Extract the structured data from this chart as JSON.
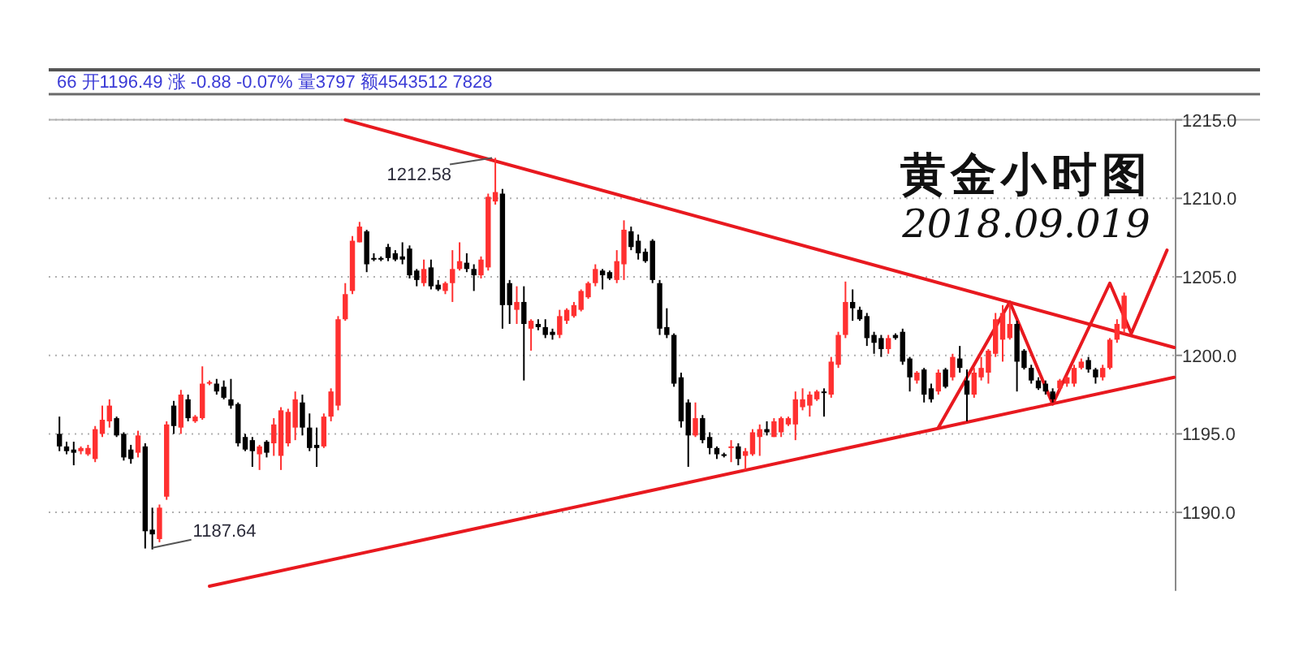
{
  "chart_data": {
    "type": "candlestick",
    "title": "黄金小时图",
    "subtitle": "2018.09.019",
    "annotations": [
      "66 开1196.49 涨 -0.88 -0.07% 量3797 额4543512 7828",
      "1212.58",
      "1187.64"
    ],
    "categories": [
      null,
      null,
      null,
      null,
      null,
      null,
      null,
      null,
      null,
      null,
      null,
      null,
      null,
      null,
      null,
      null,
      null,
      null,
      null,
      null,
      null,
      null,
      null,
      null,
      null,
      null,
      null,
      null,
      null,
      null,
      null,
      null,
      null,
      null,
      null,
      null,
      null,
      null,
      null,
      null,
      null,
      null,
      null,
      null,
      null,
      null,
      null,
      null,
      null,
      null,
      null,
      null,
      null,
      null,
      null,
      null,
      null,
      null,
      null,
      null,
      null,
      null,
      null,
      null,
      null,
      null,
      null,
      null,
      null,
      null,
      null,
      null,
      null,
      null,
      null,
      null,
      null,
      null,
      null,
      null,
      null,
      null,
      null,
      null,
      null,
      null,
      null,
      null,
      null,
      null,
      null,
      null,
      null,
      null,
      null,
      null,
      null,
      null,
      null,
      null,
      null,
      null,
      null,
      null,
      null,
      null,
      null,
      null,
      null,
      null,
      null,
      null,
      null,
      null,
      null,
      null,
      null,
      null,
      null,
      null,
      null,
      null,
      null,
      null,
      null,
      null,
      null,
      null,
      null,
      null,
      null,
      null,
      null,
      null,
      null,
      null,
      null,
      null,
      null,
      null,
      null,
      null,
      null,
      null,
      null,
      null,
      null,
      null,
      null,
      null,
      null,
      null,
      null,
      null,
      null,
      null,
      null
    ],
    "ohlc": [
      [
        1195.0,
        1196.1,
        1193.9,
        1194.2
      ],
      [
        1194.2,
        1194.5,
        1193.7,
        1193.9
      ],
      [
        1194.0,
        1194.5,
        1193.0,
        1193.8
      ],
      [
        1193.9,
        1194.2,
        1193.7,
        1194.1
      ],
      [
        1193.7,
        1194.3,
        1193.6,
        1194.1
      ],
      [
        1193.4,
        1195.5,
        1193.2,
        1195.3
      ],
      [
        1195.0,
        1196.8,
        1194.8,
        1195.9
      ],
      [
        1195.8,
        1197.2,
        1195.4,
        1196.8
      ],
      [
        1196.0,
        1196.1,
        1194.8,
        1194.9
      ],
      [
        1195.0,
        1195.1,
        1193.3,
        1193.5
      ],
      [
        1194.0,
        1194.3,
        1193.1,
        1193.4
      ],
      [
        1193.8,
        1195.2,
        1193.5,
        1194.9
      ],
      [
        1194.2,
        1194.4,
        1187.7,
        1188.8
      ],
      [
        1188.9,
        1190.3,
        1187.64,
        1188.6
      ],
      [
        1188.3,
        1190.5,
        1188.1,
        1190.3
      ],
      [
        1191.0,
        1195.8,
        1190.8,
        1195.6
      ],
      [
        1196.8,
        1197.1,
        1195.0,
        1195.5
      ],
      [
        1195.4,
        1197.8,
        1195.0,
        1197.5
      ],
      [
        1197.2,
        1197.5,
        1195.8,
        1196.0
      ],
      [
        1195.8,
        1196.2,
        1195.7,
        1196.1
      ],
      [
        1196.0,
        1199.3,
        1195.9,
        1198.2
      ],
      [
        1198.2,
        1198.4,
        1198.1,
        1198.3
      ],
      [
        1198.2,
        1198.5,
        1197.5,
        1197.7
      ],
      [
        1198.0,
        1198.4,
        1197.2,
        1197.3
      ],
      [
        1197.2,
        1198.5,
        1196.6,
        1196.8
      ],
      [
        1196.9,
        1197.0,
        1194.2,
        1194.4
      ],
      [
        1194.8,
        1195.0,
        1193.9,
        1194.0
      ],
      [
        1194.6,
        1194.8,
        1192.9,
        1193.9
      ],
      [
        1193.7,
        1194.3,
        1192.7,
        1194.2
      ],
      [
        1194.5,
        1194.6,
        1193.5,
        1193.8
      ],
      [
        1194.4,
        1196.0,
        1193.6,
        1195.6
      ],
      [
        1193.6,
        1196.7,
        1192.7,
        1196.5
      ],
      [
        1194.4,
        1196.6,
        1194.2,
        1196.4
      ],
      [
        1195.4,
        1197.7,
        1194.6,
        1197.2
      ],
      [
        1197.0,
        1197.5,
        1194.9,
        1195.4
      ],
      [
        1195.4,
        1196.3,
        1193.9,
        1194.1
      ],
      [
        1194.3,
        1195.4,
        1192.9,
        1194.1
      ],
      [
        1194.2,
        1196.3,
        1194.1,
        1196.1
      ],
      [
        1196.1,
        1197.9,
        1195.8,
        1197.7
      ],
      [
        1196.8,
        1202.5,
        1196.5,
        1202.3
      ],
      [
        1202.3,
        1204.6,
        1202.2,
        1203.9
      ],
      [
        1204.1,
        1207.6,
        1203.9,
        1207.3
      ],
      [
        1207.2,
        1208.5,
        1207.2,
        1208.2
      ],
      [
        1207.9,
        1208.0,
        1205.3,
        1205.8
      ],
      [
        1206.2,
        1206.5,
        1206.0,
        1206.1
      ],
      [
        1206.2,
        1206.3,
        1206.0,
        1206.1
      ],
      [
        1206.9,
        1207.1,
        1206.0,
        1206.2
      ],
      [
        1206.5,
        1206.7,
        1206.0,
        1206.1
      ],
      [
        1206.3,
        1207.2,
        1205.8,
        1206.1
      ],
      [
        1206.8,
        1207.0,
        1204.9,
        1205.1
      ],
      [
        1205.4,
        1205.5,
        1204.4,
        1204.8
      ],
      [
        1204.6,
        1206.1,
        1204.4,
        1205.5
      ],
      [
        1205.6,
        1206.1,
        1204.2,
        1204.4
      ],
      [
        1204.5,
        1204.8,
        1204.1,
        1204.2
      ],
      [
        1204.1,
        1204.7,
        1203.9,
        1204.6
      ],
      [
        1204.6,
        1206.7,
        1203.4,
        1205.5
      ],
      [
        1205.5,
        1207.2,
        1205.4,
        1206.0
      ],
      [
        1205.9,
        1206.5,
        1205.3,
        1205.5
      ],
      [
        1205.5,
        1205.8,
        1204.1,
        1205.1
      ],
      [
        1205.1,
        1206.3,
        1204.9,
        1206.1
      ],
      [
        1205.6,
        1210.3,
        1205.4,
        1210.1
      ],
      [
        1209.8,
        1212.58,
        1209.6,
        1210.4
      ],
      [
        1210.3,
        1210.6,
        1201.7,
        1203.2
      ],
      [
        1204.6,
        1204.8,
        1202.0,
        1203.2
      ],
      [
        1202.9,
        1204.4,
        1202.0,
        1203.4
      ],
      [
        1203.4,
        1204.4,
        1198.4,
        1202.0
      ],
      [
        1201.7,
        1202.3,
        1200.3,
        1202.2
      ],
      [
        1202.0,
        1202.3,
        1201.6,
        1201.8
      ],
      [
        1201.8,
        1202.3,
        1201.1,
        1201.3
      ],
      [
        1201.5,
        1201.7,
        1201.0,
        1201.3
      ],
      [
        1201.3,
        1202.9,
        1201.1,
        1202.5
      ],
      [
        1202.2,
        1203.0,
        1202.0,
        1202.9
      ],
      [
        1202.5,
        1203.4,
        1202.4,
        1203.2
      ],
      [
        1202.9,
        1204.2,
        1202.8,
        1204.1
      ],
      [
        1203.7,
        1204.7,
        1203.6,
        1204.6
      ],
      [
        1204.6,
        1205.8,
        1204.4,
        1205.5
      ],
      [
        1205.4,
        1205.5,
        1204.2,
        1205.1
      ],
      [
        1205.3,
        1205.4,
        1204.8,
        1204.9
      ],
      [
        1204.8,
        1206.7,
        1204.6,
        1206.0
      ],
      [
        1205.8,
        1208.6,
        1204.8,
        1208.0
      ],
      [
        1207.9,
        1208.2,
        1206.7,
        1206.9
      ],
      [
        1207.3,
        1207.7,
        1206.1,
        1206.5
      ],
      [
        1206.6,
        1206.8,
        1205.9,
        1206.0
      ],
      [
        1207.3,
        1207.4,
        1204.6,
        1204.8
      ],
      [
        1204.6,
        1204.8,
        1201.3,
        1201.7
      ],
      [
        1201.8,
        1203.0,
        1201.1,
        1201.3
      ],
      [
        1201.3,
        1201.4,
        1198.0,
        1198.2
      ],
      [
        1198.6,
        1198.9,
        1195.4,
        1195.8
      ],
      [
        1197.0,
        1197.2,
        1192.9,
        1194.9
      ],
      [
        1194.9,
        1197.0,
        1194.8,
        1196.0
      ],
      [
        1196.0,
        1196.2,
        1194.4,
        1194.6
      ],
      [
        1194.8,
        1195.1,
        1193.7,
        1194.1
      ],
      [
        1194.1,
        1194.2,
        1193.4,
        1193.7
      ],
      [
        1193.7,
        1193.8,
        1193.5,
        1193.6
      ],
      [
        1194.1,
        1194.6,
        1193.2,
        1194.2
      ],
      [
        1194.2,
        1194.4,
        1193.0,
        1193.4
      ],
      [
        1193.6,
        1194.1,
        1192.7,
        1193.9
      ],
      [
        1193.7,
        1195.3,
        1193.6,
        1195.1
      ],
      [
        1194.8,
        1195.6,
        1193.6,
        1195.3
      ],
      [
        1195.3,
        1195.8,
        1194.9,
        1195.1
      ],
      [
        1194.8,
        1196.0,
        1194.8,
        1195.8
      ],
      [
        1195.1,
        1196.1,
        1194.8,
        1196.0
      ],
      [
        1195.6,
        1196.1,
        1195.5,
        1196.0
      ],
      [
        1195.6,
        1197.7,
        1194.6,
        1197.2
      ],
      [
        1196.7,
        1197.9,
        1196.5,
        1197.2
      ],
      [
        1196.8,
        1197.7,
        1196.1,
        1197.5
      ],
      [
        1197.2,
        1197.8,
        1197.1,
        1197.7
      ],
      [
        1197.7,
        1197.9,
        1196.1,
        1197.6
      ],
      [
        1197.5,
        1199.9,
        1197.3,
        1199.6
      ],
      [
        1199.4,
        1201.5,
        1199.2,
        1201.3
      ],
      [
        1201.3,
        1204.7,
        1201.1,
        1203.4
      ],
      [
        1203.4,
        1204.2,
        1202.2,
        1203.0
      ],
      [
        1202.9,
        1203.1,
        1202.2,
        1202.3
      ],
      [
        1202.5,
        1202.7,
        1200.6,
        1201.1
      ],
      [
        1201.3,
        1201.5,
        1200.1,
        1200.8
      ],
      [
        1201.1,
        1201.3,
        1199.9,
        1200.4
      ],
      [
        1200.4,
        1201.3,
        1200.1,
        1201.1
      ],
      [
        1201.3,
        1201.4,
        1201.0,
        1201.1
      ],
      [
        1201.5,
        1201.7,
        1199.4,
        1199.6
      ],
      [
        1199.8,
        1199.9,
        1197.7,
        1198.6
      ],
      [
        1198.4,
        1199.0,
        1198.2,
        1198.9
      ],
      [
        1199.1,
        1199.2,
        1197.0,
        1197.5
      ],
      [
        1197.9,
        1198.2,
        1197.0,
        1197.2
      ],
      [
        1197.7,
        1199.1,
        1197.5,
        1198.9
      ],
      [
        1199.1,
        1199.2,
        1197.9,
        1198.0
      ],
      [
        1198.6,
        1200.1,
        1198.4,
        1199.9
      ],
      [
        1199.8,
        1200.6,
        1198.9,
        1199.2
      ],
      [
        1198.4,
        1199.1,
        1195.8,
        1197.5
      ],
      [
        1197.5,
        1199.2,
        1197.3,
        1198.9
      ],
      [
        1198.6,
        1199.9,
        1198.4,
        1199.2
      ],
      [
        1198.9,
        1200.4,
        1198.2,
        1200.3
      ],
      [
        1200.1,
        1202.7,
        1199.9,
        1202.3
      ],
      [
        1201.0,
        1203.2,
        1199.6,
        1202.7
      ],
      [
        1201.1,
        1203.3,
        1201.0,
        1202.0
      ],
      [
        1202.0,
        1202.2,
        1197.7,
        1199.6
      ],
      [
        1200.3,
        1200.4,
        1199.1,
        1199.2
      ],
      [
        1199.2,
        1199.4,
        1198.2,
        1198.4
      ],
      [
        1198.4,
        1198.6,
        1197.8,
        1197.9
      ],
      [
        1198.2,
        1198.4,
        1197.5,
        1197.7
      ],
      [
        1197.7,
        1197.9,
        1197.0,
        1197.2
      ],
      [
        1197.9,
        1198.5,
        1197.7,
        1198.4
      ],
      [
        1198.2,
        1198.7,
        1198.0,
        1198.6
      ],
      [
        1198.2,
        1199.4,
        1198.0,
        1199.2
      ],
      [
        1199.2,
        1199.8,
        1199.1,
        1199.6
      ],
      [
        1199.7,
        1199.9,
        1198.9,
        1199.1
      ],
      [
        1199.1,
        1199.2,
        1198.2,
        1198.6
      ],
      [
        1198.6,
        1199.4,
        1198.4,
        1199.2
      ],
      [
        1199.2,
        1201.1,
        1199.1,
        1201.0
      ],
      [
        1201.0,
        1202.3,
        1200.8,
        1202.0
      ],
      [
        1201.7,
        1204.0,
        1201.4,
        1203.8
      ],
      null,
      null,
      null,
      null,
      null,
      null,
      null
    ],
    "colors": [
      "#000000",
      "#000000",
      "#000000",
      "#ff3030",
      "#ff3030",
      "#ff3030",
      "#ff3030",
      "#ff3030",
      "#000000",
      "#000000",
      "#000000",
      "#ff3030",
      "#000000",
      "#000000",
      "#ff3030",
      "#ff3030",
      "#000000",
      "#ff3030",
      "#000000",
      "#ff3030",
      "#ff3030",
      "#ff3030",
      "#000000",
      "#000000",
      "#000000",
      "#000000",
      "#000000",
      "#000000",
      "#ff3030",
      "#000000",
      "#ff3030",
      "#ff3030",
      "#ff3030",
      "#ff3030",
      "#000000",
      "#000000",
      "#000000",
      "#ff3030",
      "#ff3030",
      "#ff3030",
      "#ff3030",
      "#ff3030",
      "#ff3030",
      "#000000",
      "#000000",
      "#000000",
      "#000000",
      "#000000",
      "#000000",
      "#000000",
      "#000000",
      "#ff3030",
      "#000000",
      "#000000",
      "#ff3030",
      "#ff3030",
      "#ff3030",
      "#000000",
      "#000000",
      "#ff3030",
      "#ff3030",
      "#ff3030",
      "#000000",
      "#000000",
      "#ff3030",
      "#000000",
      "#ff3030",
      "#000000",
      "#000000",
      "#000000",
      "#ff3030",
      "#ff3030",
      "#ff3030",
      "#ff3030",
      "#ff3030",
      "#ff3030",
      "#000000",
      "#000000",
      "#ff3030",
      "#ff3030",
      "#000000",
      "#000000",
      "#000000",
      "#000000",
      "#000000",
      "#000000",
      "#000000",
      "#000000",
      "#000000",
      "#ff3030",
      "#000000",
      "#000000",
      "#000000",
      "#000000",
      "#ff3030",
      "#000000",
      "#ff3030",
      "#ff3030",
      "#ff3030",
      "#000000",
      "#ff3030",
      "#ff3030",
      "#ff3030",
      "#ff3030",
      "#ff3030",
      "#ff3030",
      "#ff3030",
      "#000000",
      "#ff3030",
      "#ff3030",
      "#ff3030",
      "#000000",
      "#000000",
      "#000000",
      "#000000",
      "#000000",
      "#ff3030",
      "#000000",
      "#000000",
      "#000000",
      "#ff3030",
      "#000000",
      "#000000",
      "#ff3030",
      "#000000",
      "#ff3030",
      "#000000",
      "#000000",
      "#ff3030",
      "#ff3030",
      "#ff3030",
      "#ff3030",
      "#ff3030",
      "#ff3030",
      "#000000",
      "#000000",
      "#000000",
      "#000000",
      "#000000",
      "#000000",
      "#ff3030",
      "#ff3030",
      "#ff3030",
      "#ff3030",
      "#000000",
      "#000000",
      "#ff3030",
      "#ff3030",
      "#ff3030",
      "#ff3030",
      null,
      null,
      null,
      null,
      null,
      null,
      null
    ],
    "series": [
      {
        "type": "line",
        "color": "#e8191f",
        "values": [
          null,
          null,
          null,
          null,
          null,
          null,
          null,
          null,
          null,
          null,
          null,
          null,
          null,
          null,
          null,
          null,
          null,
          null,
          null,
          null,
          null,
          null,
          null,
          null,
          null,
          null,
          null,
          null,
          null,
          null,
          null,
          null,
          null,
          null,
          null,
          null,
          null,
          null,
          null,
          null,
          1215.0,
          null,
          null,
          null,
          null,
          null,
          null,
          null,
          null,
          null,
          null,
          null,
          null,
          null,
          null,
          null,
          null,
          null,
          null,
          null,
          null,
          null,
          null,
          null,
          null,
          null,
          null,
          null,
          null,
          null,
          null,
          null,
          null,
          null,
          null,
          null,
          null,
          null,
          null,
          null,
          null,
          null,
          null,
          null,
          null,
          null,
          null,
          null,
          null,
          null,
          null,
          null,
          null,
          null,
          null,
          null,
          null,
          null,
          null,
          null,
          null,
          null,
          null,
          null,
          null,
          null,
          null,
          null,
          null,
          null,
          null,
          null,
          null,
          null,
          null,
          null,
          null,
          null,
          null,
          null,
          null,
          null,
          null,
          null,
          null,
          null,
          null,
          null,
          null,
          null,
          null,
          null,
          null,
          null,
          null,
          null,
          null,
          null,
          null,
          null,
          null,
          null,
          null,
          null,
          null,
          null,
          null,
          null,
          null,
          null,
          null,
          null,
          null,
          null,
          null,
          null,
          1200.5
        ]
      },
      {
        "type": "line",
        "color": "#e8191f",
        "values": [
          null,
          null,
          null,
          null,
          null,
          null,
          null,
          null,
          null,
          null,
          null,
          null,
          null,
          null,
          null,
          null,
          null,
          null,
          null,
          null,
          null,
          1185.3,
          null,
          null,
          null,
          null,
          null,
          null,
          null,
          null,
          null,
          null,
          null,
          null,
          null,
          null,
          null,
          null,
          null,
          null,
          null,
          null,
          null,
          null,
          null,
          null,
          null,
          null,
          null,
          null,
          null,
          null,
          null,
          null,
          null,
          null,
          null,
          null,
          null,
          null,
          null,
          null,
          null,
          null,
          null,
          null,
          null,
          null,
          null,
          null,
          null,
          null,
          null,
          null,
          null,
          null,
          null,
          null,
          null,
          null,
          null,
          null,
          null,
          null,
          null,
          null,
          null,
          null,
          null,
          null,
          null,
          null,
          null,
          null,
          null,
          null,
          null,
          null,
          null,
          null,
          null,
          null,
          null,
          null,
          null,
          null,
          null,
          null,
          null,
          null,
          null,
          null,
          null,
          null,
          null,
          null,
          null,
          null,
          null,
          null,
          null,
          null,
          null,
          null,
          null,
          null,
          null,
          null,
          null,
          null,
          null,
          null,
          null,
          null,
          null,
          null,
          null,
          null,
          null,
          null,
          null,
          null,
          null,
          null,
          null,
          null,
          null,
          null,
          null,
          null,
          null,
          null,
          null,
          null,
          null,
          null,
          1198.6
        ]
      },
      {
        "type": "line",
        "color": "#e8191f",
        "values": [
          null,
          null,
          null,
          null,
          null,
          null,
          null,
          null,
          null,
          null,
          null,
          null,
          null,
          null,
          null,
          null,
          null,
          null,
          null,
          null,
          null,
          null,
          null,
          null,
          null,
          null,
          null,
          null,
          null,
          null,
          null,
          null,
          null,
          null,
          null,
          null,
          null,
          null,
          null,
          null,
          null,
          null,
          null,
          null,
          null,
          null,
          null,
          null,
          null,
          null,
          null,
          null,
          null,
          null,
          null,
          null,
          null,
          null,
          null,
          null,
          null,
          null,
          null,
          null,
          null,
          null,
          null,
          null,
          null,
          null,
          null,
          null,
          null,
          null,
          null,
          null,
          null,
          null,
          null,
          null,
          null,
          null,
          null,
          null,
          null,
          null,
          null,
          null,
          null,
          null,
          null,
          null,
          null,
          null,
          null,
          null,
          null,
          null,
          null,
          null,
          null,
          null,
          null,
          null,
          null,
          null,
          null,
          null,
          null,
          null,
          null,
          null,
          null,
          null,
          null,
          null,
          null,
          null,
          null,
          null,
          null,
          null,
          null,
          1195.4,
          null,
          null,
          null,
          null,
          null,
          null,
          null,
          null,
          null,
          1203.4,
          null,
          null,
          null,
          null,
          null,
          1196.9,
          null,
          null,
          null,
          null,
          null,
          null,
          null,
          1204.6,
          null,
          null,
          1201.4,
          null,
          null,
          null,
          null,
          1206.7,
          null
        ]
      }
    ],
    "ylim": [
      1185,
      1215
    ],
    "yticks": [
      {
        "value": 1190,
        "label": "1190.0"
      },
      {
        "value": 1195,
        "label": "1195.0"
      },
      {
        "value": 1200,
        "label": "1200.0"
      },
      {
        "value": 1205,
        "label": "1205.0"
      },
      {
        "value": 1210,
        "label": "1210.0"
      },
      {
        "value": 1215,
        "label": "1215.0"
      }
    ],
    "grid": "y",
    "tick_labels": "y"
  }
}
